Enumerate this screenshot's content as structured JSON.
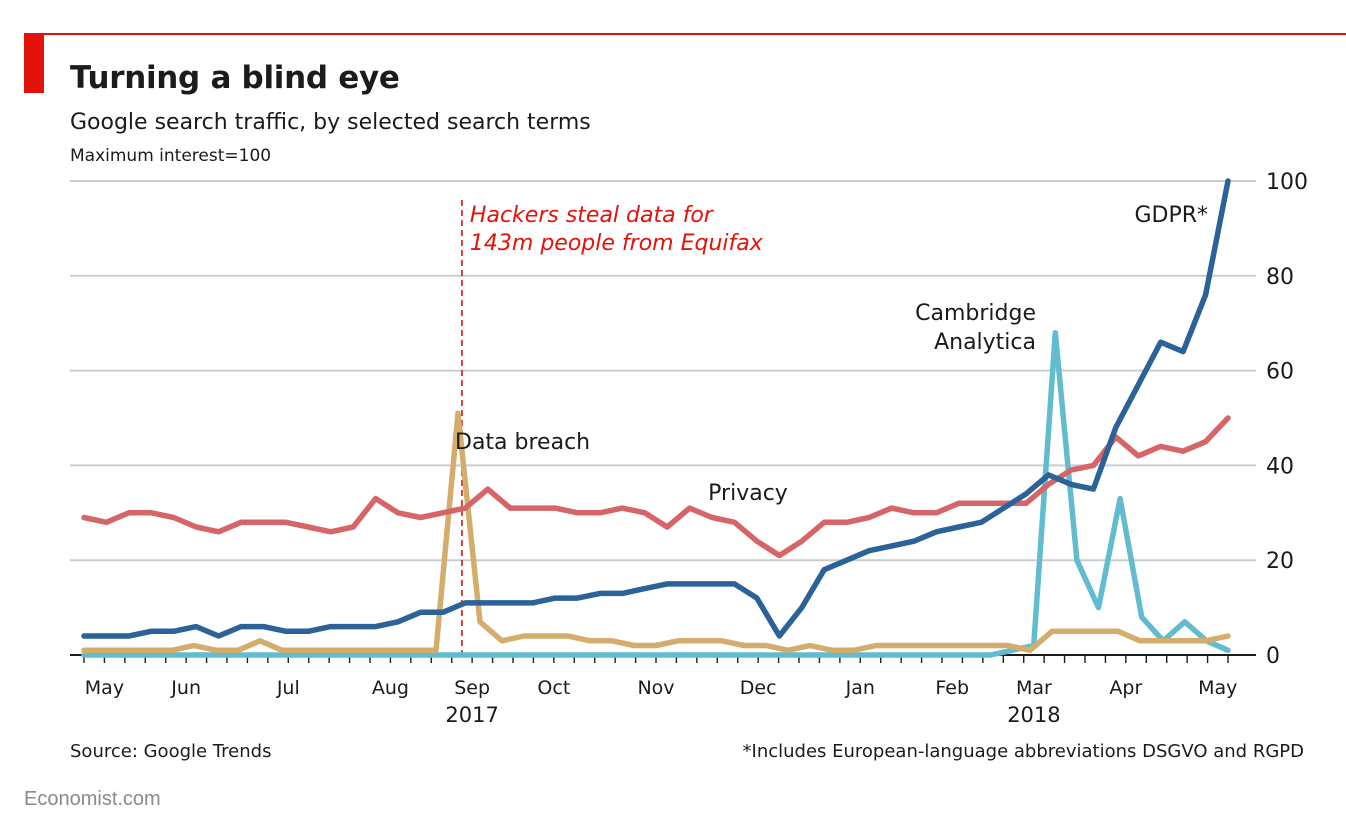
{
  "header": {
    "title": "Turning a blind eye",
    "subtitle": "Google search traffic, by selected search terms",
    "unit_note": "Maximum interest=100"
  },
  "footer": {
    "source": "Source: Google Trends",
    "footnote": "*Includes European-language abbreviations DSGVO and RGPD",
    "brand": "Economist.com"
  },
  "colors": {
    "accent": "#e3120b",
    "gdpr": "#2b6297",
    "privacy": "#d66568",
    "data_breach": "#d4ac6b",
    "cambridge_analytica": "#62bccf",
    "grid": "#c9cdd0"
  },
  "chart_data": {
    "type": "line",
    "ylim": [
      0,
      100
    ],
    "y_ticks": [
      0,
      20,
      40,
      60,
      80,
      100
    ],
    "y_axis_side": "right",
    "grid": true,
    "x_tick_labels": [
      {
        "label": "May",
        "week": 1
      },
      {
        "label": "Jun",
        "week": 5
      },
      {
        "label": "Jul",
        "week": 10
      },
      {
        "label": "Aug",
        "week": 15
      },
      {
        "label": "Sep",
        "week": 19
      },
      {
        "label": "Oct",
        "week": 23
      },
      {
        "label": "Nov",
        "week": 28
      },
      {
        "label": "Dec",
        "week": 33
      },
      {
        "label": "Jan",
        "week": 38
      },
      {
        "label": "Feb",
        "week": 42.5
      },
      {
        "label": "Mar",
        "week": 46.5
      },
      {
        "label": "Apr",
        "week": 51
      },
      {
        "label": "May",
        "week": 55.5
      }
    ],
    "year_labels": [
      {
        "label": "2017",
        "week": 19
      },
      {
        "label": "2018",
        "week": 46.5
      }
    ],
    "weeks": 57,
    "series": [
      {
        "name": "GDPR*",
        "key": "gdpr",
        "values": [
          4,
          4,
          4,
          5,
          5,
          6,
          4,
          6,
          6,
          5,
          5,
          6,
          6,
          6,
          7,
          9,
          9,
          11,
          11,
          11,
          11,
          12,
          12,
          13,
          13,
          14,
          15,
          15,
          15,
          15,
          12,
          4,
          10,
          18,
          20,
          22,
          23,
          24,
          26,
          27,
          28,
          31,
          34,
          38,
          36,
          35,
          48,
          57,
          66,
          64,
          76,
          100
        ]
      },
      {
        "name": "Privacy",
        "key": "privacy",
        "values": [
          29,
          28,
          30,
          30,
          29,
          27,
          26,
          28,
          28,
          28,
          27,
          26,
          27,
          33,
          30,
          29,
          30,
          31,
          35,
          31,
          31,
          31,
          30,
          30,
          31,
          30,
          27,
          31,
          29,
          28,
          24,
          21,
          24,
          28,
          28,
          29,
          31,
          30,
          30,
          32,
          32,
          32,
          32,
          36,
          39,
          40,
          46,
          42,
          44,
          43,
          45,
          50
        ]
      },
      {
        "name": "Data breach",
        "key": "data_breach",
        "values": [
          1,
          1,
          1,
          1,
          1,
          2,
          1,
          1,
          3,
          1,
          1,
          1,
          1,
          1,
          1,
          1,
          1,
          51,
          7,
          3,
          4,
          4,
          4,
          3,
          3,
          2,
          2,
          3,
          3,
          3,
          2,
          2,
          1,
          2,
          1,
          1,
          2,
          2,
          2,
          2,
          2,
          2,
          2,
          1,
          5,
          5,
          5,
          5,
          3,
          3,
          3,
          3,
          4
        ]
      },
      {
        "name": "Cambridge Analytica",
        "key": "cambridge_analytica",
        "values": [
          0,
          0,
          0,
          0,
          0,
          0,
          0,
          0,
          0,
          0,
          0,
          0,
          0,
          0,
          0,
          0,
          0,
          0,
          0,
          0,
          0,
          0,
          0,
          0,
          0,
          0,
          0,
          0,
          0,
          0,
          0,
          0,
          0,
          0,
          0,
          0,
          0,
          0,
          0,
          0,
          0,
          0,
          0,
          1,
          2,
          68,
          20,
          10,
          33,
          8,
          3,
          7,
          3,
          1
        ]
      }
    ],
    "annotations": [
      {
        "key": "equifax",
        "text_lines": [
          "Hackers steal data for",
          "143m people from Equifax"
        ],
        "week": 18.5
      },
      {
        "key": "gdpr_label",
        "text": "GDPR*"
      },
      {
        "key": "privacy_label",
        "text": "Privacy"
      },
      {
        "key": "data_breach_label",
        "text": "Data breach"
      },
      {
        "key": "ca_label",
        "text_lines": [
          "Cambridge",
          "Analytica"
        ]
      }
    ]
  }
}
